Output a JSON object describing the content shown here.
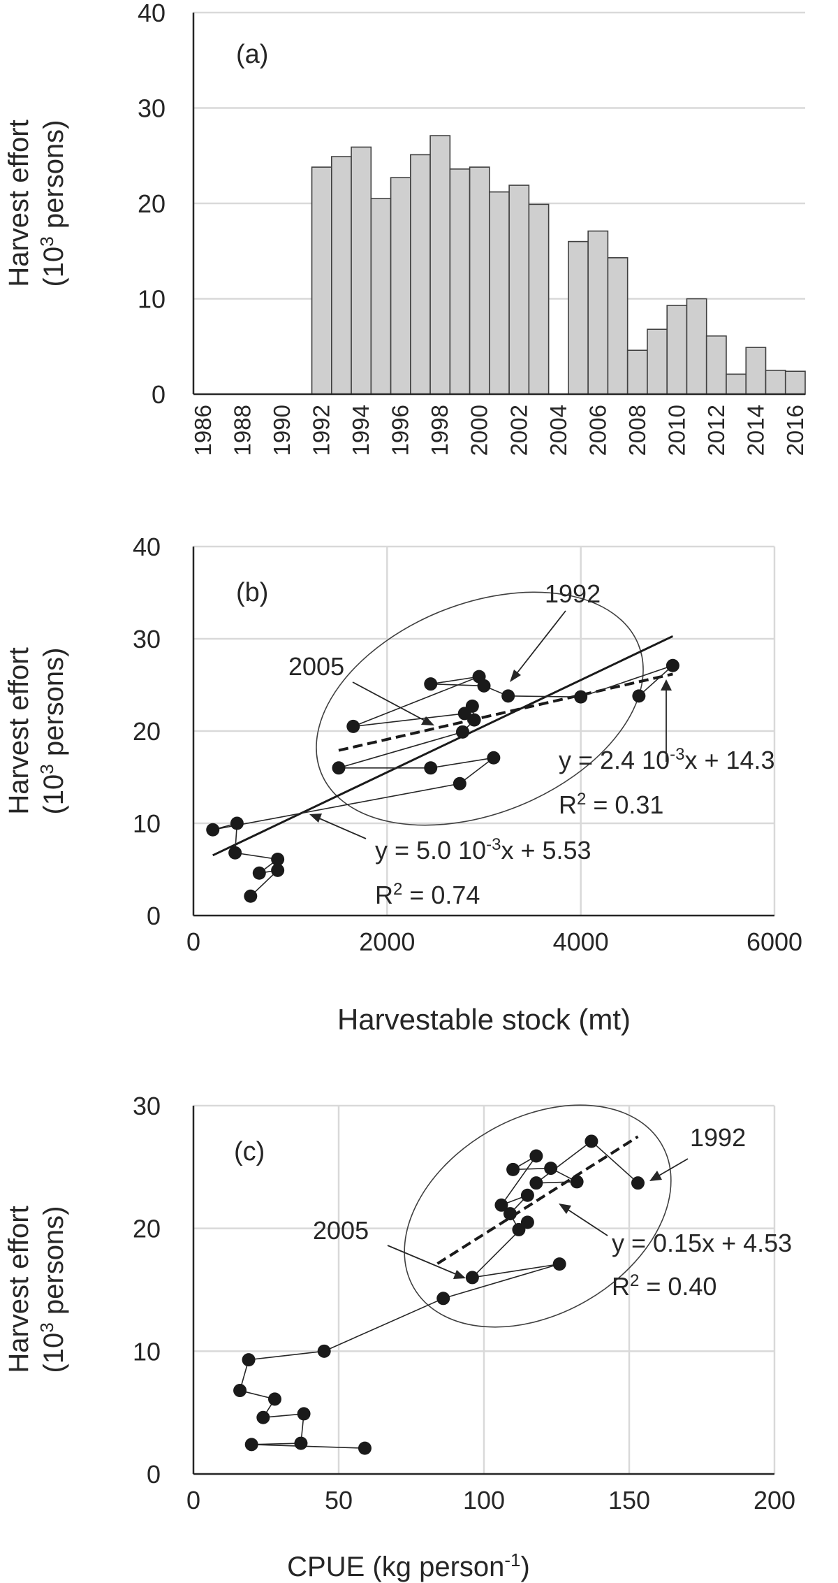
{
  "chart_data": [
    {
      "type": "bar",
      "panel_label": "(a)",
      "ylabel": "Harvest effort",
      "ylabel_line2": "(10",
      "ylabel_sup": "3",
      "ylabel_tail": " persons)",
      "ylim": [
        0,
        40
      ],
      "yticks": [
        0,
        10,
        20,
        30,
        40
      ],
      "categories": [
        "1986",
        "1987",
        "1988",
        "1989",
        "1990",
        "1991",
        "1992",
        "1993",
        "1994",
        "1995",
        "1996",
        "1997",
        "1998",
        "1999",
        "2000",
        "2001",
        "2002",
        "2003",
        "2004",
        "2005",
        "2006",
        "2007",
        "2008",
        "2009",
        "2010",
        "2011",
        "2012",
        "2013",
        "2014",
        "2015",
        "2016"
      ],
      "tick_labels": [
        "1986",
        "1988",
        "1990",
        "1992",
        "1994",
        "1996",
        "1998",
        "2000",
        "2002",
        "2004",
        "2006",
        "2008",
        "2010",
        "2012",
        "2014",
        "2016"
      ],
      "values": [
        null,
        null,
        null,
        null,
        null,
        null,
        23.8,
        24.9,
        25.9,
        20.5,
        22.7,
        25.1,
        27.1,
        23.6,
        23.8,
        21.2,
        21.9,
        19.9,
        null,
        16.0,
        17.1,
        14.3,
        4.6,
        6.8,
        9.3,
        10.0,
        6.1,
        2.1,
        4.9,
        2.5,
        2.4
      ],
      "grid": true
    },
    {
      "type": "scatter",
      "panel_label": "(b)",
      "xlabel": "Harvestable stock (mt)",
      "ylabel": "Harvest effort",
      "ylabel_line2": "(10",
      "ylabel_sup": "3",
      "ylabel_tail": " persons)",
      "xlim": [
        0,
        6000
      ],
      "ylim": [
        0,
        40
      ],
      "xticks": [
        0,
        2000,
        4000,
        6000
      ],
      "yticks": [
        0,
        10,
        20,
        30,
        40
      ],
      "grid": true,
      "points": [
        [
          4600,
          23.8
        ],
        [
          4950,
          27.1
        ],
        [
          4000,
          23.7
        ],
        [
          3250,
          23.8
        ],
        [
          3000,
          24.9
        ],
        [
          2450,
          25.1
        ],
        [
          2950,
          25.9
        ],
        [
          1650,
          20.5
        ],
        [
          2800,
          21.9
        ],
        [
          2880,
          22.7
        ],
        [
          2900,
          21.2
        ],
        [
          2780,
          19.9
        ],
        [
          1500,
          16.0
        ],
        [
          2450,
          16.0
        ],
        [
          3100,
          17.1
        ],
        [
          2750,
          14.3
        ],
        [
          200,
          9.3
        ],
        [
          450,
          10.0
        ],
        [
          430,
          6.8
        ],
        [
          870,
          6.1
        ],
        [
          680,
          4.6
        ],
        [
          870,
          4.9
        ],
        [
          590,
          2.1
        ]
      ],
      "fits": [
        {
          "equation": "y = 5.0 10",
          "exp": "-3",
          "equation_tail": "x + 5.53",
          "r2_prefix": "R",
          "r2_sup": "2",
          "r2_tail": " = 0.74",
          "slope": 0.005,
          "intercept": 5.53,
          "x_from": 200,
          "x_to": 4950,
          "style": "solid"
        },
        {
          "equation": "y = 2.4 10",
          "exp": "-3",
          "equation_tail": "x + 14.3",
          "r2_prefix": "R",
          "r2_sup": "2",
          "r2_tail": " = 0.31",
          "slope": 0.0024,
          "intercept": 14.3,
          "x_from": 1500,
          "x_to": 4950,
          "style": "dashed"
        }
      ],
      "annotations": [
        "1992",
        "2005"
      ]
    },
    {
      "type": "scatter",
      "panel_label": "(c)",
      "xlabel": "CPUE (kg person",
      "xlabel_sup": "-1",
      "xlabel_tail": ")",
      "ylabel": "Harvest effort",
      "ylabel_line2": "(10",
      "ylabel_sup": "3",
      "ylabel_tail": " persons)",
      "xlim": [
        0,
        200
      ],
      "ylim": [
        0,
        30
      ],
      "xticks": [
        0,
        50,
        100,
        150,
        200
      ],
      "yticks": [
        0,
        10,
        20,
        30
      ],
      "grid": true,
      "points": [
        [
          153,
          23.7
        ],
        [
          137,
          27.1
        ],
        [
          118,
          23.7
        ],
        [
          132,
          23.8
        ],
        [
          123,
          24.9
        ],
        [
          110,
          24.8
        ],
        [
          118,
          25.9
        ],
        [
          106,
          21.9
        ],
        [
          115,
          22.7
        ],
        [
          109,
          21.2
        ],
        [
          112,
          19.9
        ],
        [
          115,
          20.5
        ],
        [
          96,
          16.0
        ],
        [
          126,
          17.1
        ],
        [
          86,
          14.3
        ],
        [
          45,
          10.0
        ],
        [
          19,
          9.3
        ],
        [
          16,
          6.8
        ],
        [
          28,
          6.1
        ],
        [
          24,
          4.6
        ],
        [
          38,
          4.9
        ],
        [
          37,
          2.5
        ],
        [
          20,
          2.4
        ],
        [
          59,
          2.1
        ]
      ],
      "fits": [
        {
          "equation": "y = 0.15x + 4.53",
          "r2_prefix": "R",
          "r2_sup": "2",
          "r2_tail": " = 0.40",
          "slope": 0.15,
          "intercept": 4.53,
          "x_from": 84,
          "x_to": 153,
          "style": "dashed"
        }
      ],
      "annotations": [
        "1992",
        "2005"
      ]
    }
  ]
}
